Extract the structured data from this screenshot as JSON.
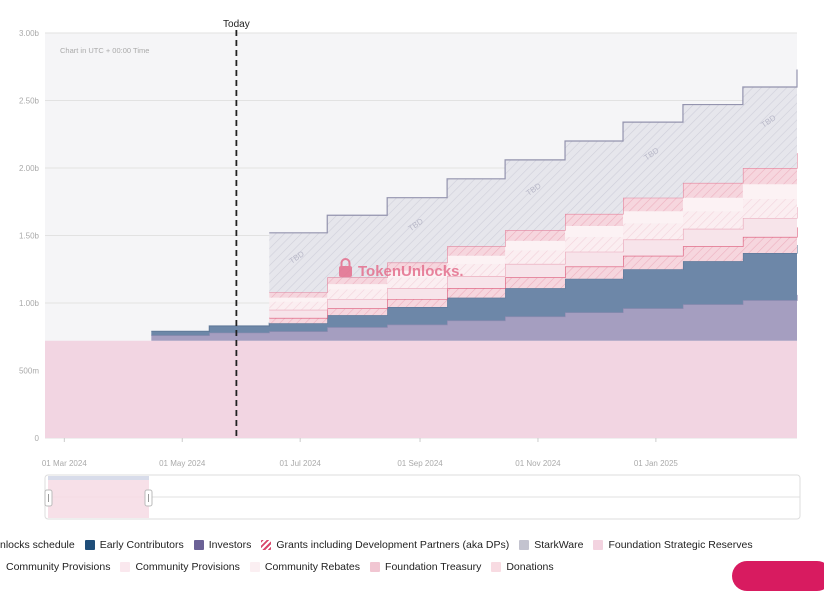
{
  "colors": {
    "early_contributors": "#6d87a8",
    "investors": "#a59ec0",
    "grants": "#e8a7b6",
    "starkware": "#e3e3ea",
    "foundation_strategic_reserves": "#f2d5e2",
    "community_provisions_a": "#f7e4ea",
    "community_provisions_b": "#fbeff2",
    "community_rebates": "#fcf2f4",
    "foundation_treasury": "#f3cbd6",
    "donations": "#f9dde4",
    "today_line": "#222222",
    "brand": "#d9486b"
  },
  "chart_data": {
    "type": "area",
    "stacked": true,
    "step": true,
    "note": "Chart in UTC + 00:00 Time",
    "today_label": "Today",
    "today_date": "2024-05-29",
    "watermark": "TokenUnlocks.",
    "tbd_label": "TBD",
    "x_start": "2024-02-20",
    "x_end": "2025-03-15",
    "x_tick_labels": [
      "01 Mar 2024",
      "01 May 2024",
      "01 Jul 2024",
      "01 Sep 2024",
      "01 Nov 2024",
      "01 Jan 2025"
    ],
    "x_tick_dates": [
      "2024-03-01",
      "2024-05-01",
      "2024-07-01",
      "2024-09-01",
      "2024-11-01",
      "2025-01-01"
    ],
    "y_tick_labels": [
      "0",
      "500m",
      "1.00b",
      "1.50b",
      "2.00b",
      "2.50b",
      "3.00b"
    ],
    "y_tick_values": [
      0,
      0.5,
      1.0,
      1.5,
      2.0,
      2.5,
      3.0
    ],
    "y_unit": "billion",
    "ylim": [
      0,
      3.0
    ],
    "dates": [
      "2024-02-20",
      "2024-04-15",
      "2024-05-15",
      "2024-06-15",
      "2024-07-15",
      "2024-08-15",
      "2024-09-15",
      "2024-10-15",
      "2024-11-15",
      "2024-12-15",
      "2025-01-15",
      "2025-02-15",
      "2025-03-15"
    ],
    "series": [
      {
        "name": "Foundation Strategic Reserves",
        "key": "foundation_strategic_reserves",
        "values": [
          0.72,
          0.72,
          0.72,
          0.72,
          0.72,
          0.72,
          0.72,
          0.72,
          0.72,
          0.72,
          0.72,
          0.72,
          0.72
        ]
      },
      {
        "name": "Investors",
        "key": "investors",
        "values": [
          0,
          0.04,
          0.06,
          0.07,
          0.1,
          0.12,
          0.15,
          0.18,
          0.21,
          0.24,
          0.27,
          0.3,
          0.34
        ]
      },
      {
        "name": "Early Contributors",
        "key": "early_contributors",
        "values": [
          0,
          0.03,
          0.05,
          0.06,
          0.09,
          0.13,
          0.17,
          0.21,
          0.25,
          0.29,
          0.32,
          0.35,
          0.37
        ]
      },
      {
        "name": "Grants including Development Partners (aka DPs)",
        "key": "grants",
        "values": [
          0,
          0,
          0,
          0.04,
          0.05,
          0.06,
          0.07,
          0.08,
          0.09,
          0.1,
          0.11,
          0.12,
          0.13
        ]
      },
      {
        "name": "Community Provisions",
        "key": "community_provisions_a",
        "values": [
          0,
          0,
          0,
          0.06,
          0.07,
          0.08,
          0.09,
          0.1,
          0.11,
          0.12,
          0.13,
          0.14,
          0.15
        ]
      },
      {
        "name": "Community Provisions",
        "key": "community_provisions_b",
        "values": [
          0,
          0,
          0,
          0.06,
          0.07,
          0.08,
          0.09,
          0.1,
          0.11,
          0.12,
          0.13,
          0.14,
          0.15
        ]
      },
      {
        "name": "Community Rebates",
        "key": "community_rebates",
        "values": [
          0,
          0,
          0,
          0.03,
          0.04,
          0.05,
          0.06,
          0.07,
          0.08,
          0.09,
          0.1,
          0.11,
          0.12
        ]
      },
      {
        "name": "Foundation Treasury",
        "key": "foundation_treasury",
        "values": [
          0,
          0,
          0,
          0.04,
          0.05,
          0.06,
          0.07,
          0.08,
          0.09,
          0.1,
          0.11,
          0.12,
          0.13
        ]
      },
      {
        "name": "StarkWare",
        "key": "starkware",
        "values": [
          0,
          0,
          0,
          0.44,
          0.46,
          0.48,
          0.5,
          0.52,
          0.54,
          0.56,
          0.58,
          0.6,
          0.62
        ]
      }
    ],
    "navigator_range": [
      "2024-02-20",
      "2024-05-29"
    ]
  },
  "legend": {
    "title": "nlocks schedule",
    "row1": [
      {
        "label": "Early Contributors",
        "color": "#1f4e79",
        "hatch": false
      },
      {
        "label": "Investors",
        "color": "#6b6196",
        "hatch": false
      },
      {
        "label": "Grants including Development Partners (aka DPs)",
        "color": "#d9486b",
        "hatch": true
      },
      {
        "label": "StarkWare",
        "color": "#c3c3cf",
        "hatch": false
      },
      {
        "label": "Foundation Strategic Reserves",
        "color": "#f3d3e0",
        "hatch": false
      }
    ],
    "row2": [
      {
        "label": "Community Provisions",
        "color": "#f4dbe3",
        "hatch": false
      },
      {
        "label": "Community Provisions",
        "color": "#fae8ee",
        "hatch": false
      },
      {
        "label": "Community Rebates",
        "color": "#fbeff2",
        "hatch": false
      },
      {
        "label": "Foundation Treasury",
        "color": "#f1c6d2",
        "hatch": false
      },
      {
        "label": "Donations",
        "color": "#f8dbe2",
        "hatch": false
      }
    ]
  }
}
